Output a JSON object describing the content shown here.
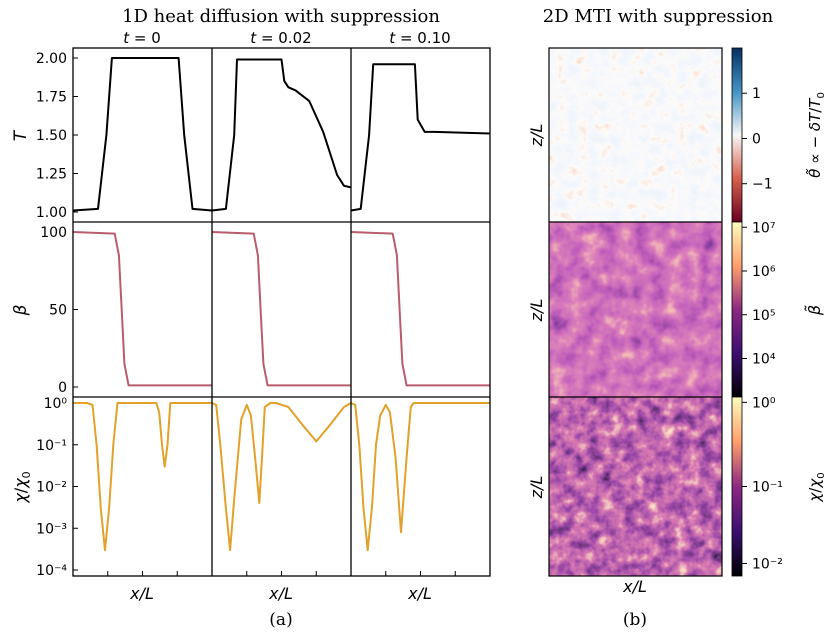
{
  "left_title": "1D heat diffusion with suppression",
  "right_title": "2D MTI with suppression",
  "col_titles": [
    "t = 0",
    "t = 0.02",
    "t = 0.10"
  ],
  "row_labels": [
    "T",
    "β",
    "χ/χ₀"
  ],
  "xlabel": "x/L",
  "panel_a_label": "(a)",
  "panel_b_label": "(b)",
  "image_ylabel": "z/L",
  "image_xlabel": "x/L",
  "colors": {
    "T_line": "#000000",
    "beta_line": "#b85c6e",
    "chi_line": "#e2a12a"
  },
  "chart_data": [
    {
      "type": "line",
      "panel": "T",
      "ylim": [
        1.0,
        2.0
      ],
      "yticks": [
        "1.00",
        "1.25",
        "1.50",
        "1.75",
        "2.00"
      ],
      "ytick_values": [
        1.0,
        1.25,
        1.5,
        1.75,
        2.0
      ],
      "x_range": [
        0,
        3
      ],
      "series": [
        {
          "x": [
            0,
            0.18,
            0.24,
            0.28,
            0.76,
            0.8,
            0.86,
            1.0
          ],
          "y": [
            1.01,
            1.02,
            1.5,
            2.0,
            2.0,
            1.5,
            1.02,
            1.01
          ]
        },
        {
          "x": [
            0.0,
            0.1,
            0.16,
            0.18,
            0.5,
            0.52,
            0.55,
            0.6,
            0.7,
            0.8,
            0.9,
            0.95,
            1.0
          ],
          "y": [
            1.01,
            1.02,
            1.5,
            1.99,
            1.99,
            1.85,
            1.81,
            1.79,
            1.72,
            1.52,
            1.24,
            1.17,
            1.16
          ]
        },
        {
          "x": [
            0.0,
            0.07,
            0.13,
            0.16,
            0.46,
            0.48,
            0.53,
            0.6,
            1.0
          ],
          "y": [
            1.01,
            1.02,
            1.5,
            1.96,
            1.96,
            1.6,
            1.52,
            1.52,
            1.51
          ]
        }
      ]
    },
    {
      "type": "line",
      "panel": "β",
      "ylim": [
        0,
        100
      ],
      "yticks": [
        "0",
        "50",
        "100"
      ],
      "ytick_values": [
        0,
        50,
        100
      ],
      "series": [
        {
          "x": [
            0.0,
            0.3,
            0.33,
            0.35,
            0.37,
            0.4,
            1.0
          ],
          "y": [
            100,
            99,
            85,
            50,
            15,
            1,
            1
          ]
        },
        {
          "x": [
            0.0,
            0.3,
            0.33,
            0.35,
            0.37,
            0.4,
            1.0
          ],
          "y": [
            100,
            99,
            85,
            50,
            15,
            1,
            1
          ]
        },
        {
          "x": [
            0.0,
            0.3,
            0.33,
            0.35,
            0.37,
            0.4,
            1.0
          ],
          "y": [
            100,
            99,
            85,
            50,
            15,
            1,
            1
          ]
        }
      ]
    },
    {
      "type": "line",
      "panel": "χ/χ₀",
      "yscale": "log",
      "ylim": [
        0.0001,
        1.0
      ],
      "yticks": [
        "10⁻⁴",
        "10⁻³",
        "10⁻²",
        "10⁻¹",
        "10⁰"
      ],
      "ytick_values": [
        0.0001,
        0.001,
        0.01,
        0.1,
        1
      ],
      "series": [
        {
          "x": [
            0.0,
            0.1,
            0.14,
            0.17,
            0.2,
            0.23,
            0.26,
            0.29,
            0.32,
            0.6,
            0.62,
            0.64,
            0.66,
            0.68,
            0.7,
            1.0
          ],
          "y": [
            1,
            1,
            0.9,
            0.1,
            0.003,
            0.0003,
            0.003,
            0.1,
            1,
            1,
            0.6,
            0.1,
            0.03,
            0.1,
            1,
            1
          ]
        },
        {
          "x": [
            0.0,
            0.03,
            0.06,
            0.1,
            0.13,
            0.16,
            0.21,
            0.25,
            0.28,
            0.31,
            0.34,
            0.36,
            0.38,
            0.42,
            0.46,
            0.55,
            0.65,
            0.75,
            0.85,
            0.95,
            1.0
          ],
          "y": [
            1,
            0.9,
            0.1,
            0.003,
            0.0003,
            0.005,
            0.4,
            0.9,
            0.5,
            0.05,
            0.004,
            0.05,
            0.8,
            1,
            1,
            0.8,
            0.3,
            0.12,
            0.3,
            0.8,
            1
          ]
        },
        {
          "x": [
            0.0,
            0.03,
            0.06,
            0.09,
            0.12,
            0.15,
            0.18,
            0.21,
            0.25,
            0.28,
            0.32,
            0.36,
            0.4,
            0.43,
            0.45,
            0.55,
            1.0
          ],
          "y": [
            1,
            0.9,
            0.1,
            0.003,
            0.0003,
            0.003,
            0.1,
            0.5,
            0.9,
            0.6,
            0.05,
            0.0008,
            0.05,
            0.8,
            1,
            1,
            1
          ]
        }
      ]
    },
    {
      "type": "heatmap",
      "panel": "θ̃ ∝ − δT/T₀",
      "colorbar_label": "θ̃ ∝ − δT/T₀",
      "colorbar_ticks": [
        "1",
        "0",
        "−1"
      ],
      "colormap": "RdBu"
    },
    {
      "type": "heatmap",
      "panel": "β̃",
      "colorbar_label": "β̃",
      "colorbar_ticks": [
        "10⁷",
        "10⁶",
        "10⁵",
        "10⁴"
      ],
      "colormap": "magma"
    },
    {
      "type": "heatmap",
      "panel": "χ/χ₀",
      "colorbar_label": "χ/χ₀",
      "colorbar_ticks": [
        "10⁰",
        "10⁻¹",
        "10⁻²"
      ],
      "colormap": "magma"
    }
  ]
}
